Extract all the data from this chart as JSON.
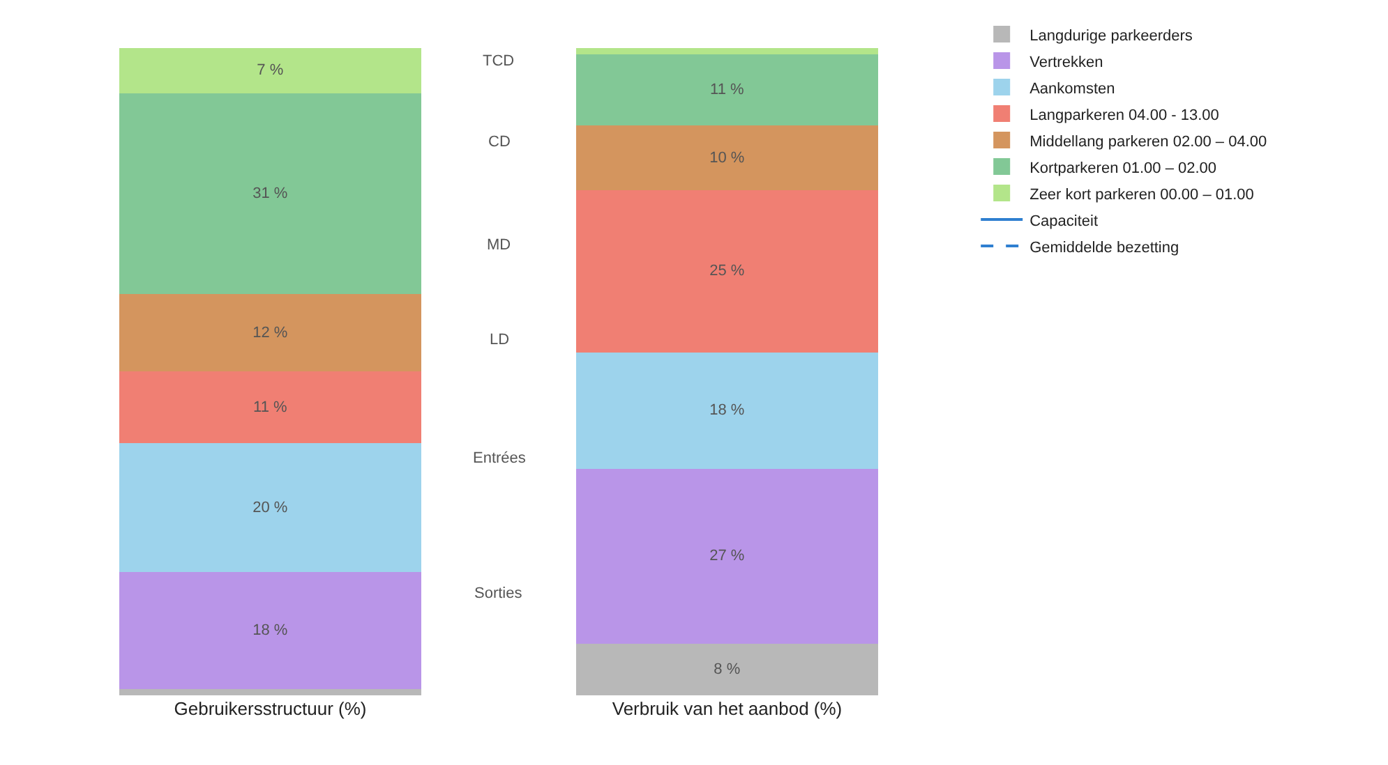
{
  "chart_data": {
    "type": "bar",
    "stacked": true,
    "categories": [
      "Gebruikersstructuur (%)",
      "Verbruik van het aanbod (%)"
    ],
    "series": [
      {
        "name": "Langdurige parkeerders",
        "color": "#b8b8b8",
        "values": [
          1,
          8
        ],
        "value_labels": [
          null,
          "8 %"
        ]
      },
      {
        "name": "Vertrekken",
        "color": "#b995e8",
        "values": [
          18,
          27
        ],
        "value_labels": [
          "18 %",
          "27 %"
        ]
      },
      {
        "name": "Aankomsten",
        "color": "#9dd3ec",
        "values": [
          20,
          18
        ],
        "value_labels": [
          "20 %",
          "18 %"
        ]
      },
      {
        "name": "Langparkeren 04.00 - 13.00",
        "color": "#f07f73",
        "values": [
          11,
          25
        ],
        "value_labels": [
          "11 %",
          "25 %"
        ]
      },
      {
        "name": "Middellang parkeren 02.00 – 04.00",
        "color": "#d4955e",
        "values": [
          12,
          10
        ],
        "value_labels": [
          "12 %",
          "10 %"
        ]
      },
      {
        "name": "Kortparkeren 01.00 – 02.00",
        "color": "#82c896",
        "values": [
          31,
          11
        ],
        "value_labels": [
          "31 %",
          "11 %"
        ]
      },
      {
        "name": "Zeer kort parkeren 00.00 – 01.00",
        "color": "#b3e58a",
        "values": [
          7,
          1
        ],
        "value_labels": [
          "7 %",
          null
        ]
      },
      {
        "name": "Capaciteit",
        "type": "line",
        "color": "#2f7fd0",
        "line_style": "solid",
        "values": [
          null,
          null
        ]
      },
      {
        "name": "Gemiddelde bezetting",
        "type": "line",
        "color": "#2f7fd0",
        "line_style": "dashed",
        "values": [
          null,
          null
        ]
      }
    ],
    "annotations": [
      "TCD",
      "CD",
      "MD",
      "LD",
      "Entrées",
      "Sorties"
    ],
    "legend": "top right"
  }
}
